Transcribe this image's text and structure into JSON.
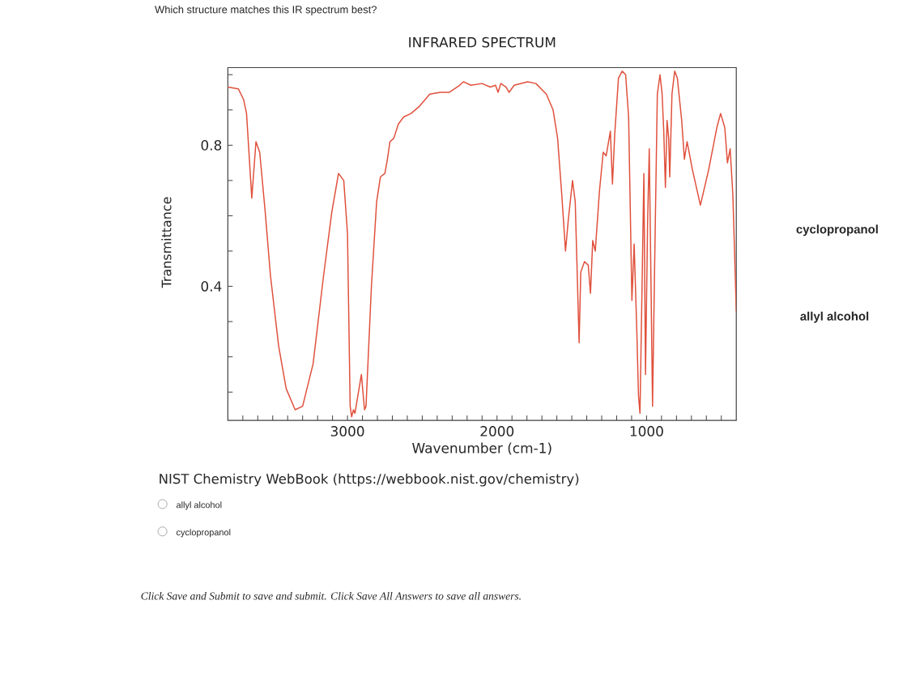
{
  "chart_data": {
    "type": "line",
    "title": "INFRARED SPECTRUM",
    "xlabel": "Wavenumber (cm-1)",
    "ylabel": "Transmittance",
    "annotations": [
      "Which structure matches this IR spectrum best?",
      "cyclopropanol",
      "allyl alcohol",
      "NIST Chemistry WebBook (https://webbook.nist.gov/chemistry)",
      "allyl alcohol",
      "cyclopropanol",
      "Click Save and Submit to save and submit. Click Save All Answers to save all answers."
    ],
    "xlim": [
      3800,
      400
    ],
    "ylim": [
      0.02,
      1.02
    ],
    "xticks": [
      {
        "value": 3700,
        "label": null
      },
      {
        "value": 3600,
        "label": null
      },
      {
        "value": 3500,
        "label": null
      },
      {
        "value": 3400,
        "label": null
      },
      {
        "value": 3300,
        "label": null
      },
      {
        "value": 3200,
        "label": null
      },
      {
        "value": 3100,
        "label": null
      },
      3000,
      {
        "value": 2900,
        "label": null
      },
      {
        "value": 2800,
        "label": null
      },
      {
        "value": 2700,
        "label": null
      },
      {
        "value": 2600,
        "label": null
      },
      {
        "value": 2500,
        "label": null
      },
      {
        "value": 2400,
        "label": null
      },
      {
        "value": 2300,
        "label": null
      },
      {
        "value": 2200,
        "label": null
      },
      {
        "value": 2100,
        "label": null
      },
      2000,
      {
        "value": 1900,
        "label": null
      },
      {
        "value": 1800,
        "label": null
      },
      {
        "value": 1700,
        "label": null
      },
      {
        "value": 1600,
        "label": null
      },
      {
        "value": 1500,
        "label": null
      },
      {
        "value": 1400,
        "label": null
      },
      {
        "value": 1300,
        "label": null
      },
      {
        "value": 1200,
        "label": null
      },
      {
        "value": 1100,
        "label": null
      },
      1000,
      {
        "value": 900,
        "label": null
      },
      {
        "value": 800,
        "label": null
      },
      {
        "value": 700,
        "label": null
      },
      {
        "value": 600,
        "label": null
      },
      {
        "value": 500,
        "label": null
      }
    ],
    "yticks": [
      {
        "value": 0.1,
        "label": null
      },
      {
        "value": 0.2,
        "label": null
      },
      {
        "value": 0.3,
        "label": null
      },
      0.4,
      {
        "value": 0.5,
        "label": null
      },
      {
        "value": 0.6,
        "label": null
      },
      {
        "value": 0.7,
        "label": null
      },
      0.8,
      {
        "value": 0.9,
        "label": null
      },
      {
        "value": 1.0,
        "label": null
      }
    ],
    "series": [
      {
        "color": "#e0503c",
        "x": [
          3800,
          3730,
          3695,
          3675,
          3640,
          3612,
          3587,
          3550,
          3515,
          3460,
          3410,
          3350,
          3300,
          3230,
          3160,
          3105,
          3060,
          3025,
          3000,
          2982,
          2972,
          2960,
          2950,
          2907,
          2886,
          2876,
          2840,
          2805,
          2780,
          2750,
          2733,
          2716,
          2690,
          2660,
          2625,
          2575,
          2520,
          2450,
          2380,
          2320,
          2250,
          2225,
          2175,
          2100,
          2045,
          2010,
          1993,
          1975,
          1940,
          1920,
          1885,
          1795,
          1740,
          1670,
          1625,
          1595,
          1567,
          1542,
          1523,
          1495,
          1477,
          1451,
          1440,
          1415,
          1390,
          1375,
          1360,
          1343,
          1315,
          1290,
          1270,
          1242,
          1228,
          1213,
          1188,
          1163,
          1140,
          1120,
          1098,
          1083,
          1065,
          1054,
          1044,
          1029,
          1018,
          1007,
          993,
          982,
          971,
          960,
          946,
          928,
          910,
          896,
          885,
          874,
          863,
          852,
          845,
          830,
          812,
          794,
          765,
          747,
          729,
          693,
          640,
          585,
          530,
          505,
          477,
          459,
          441,
          423,
          400
        ],
        "values": [
          0.965,
          0.96,
          0.93,
          0.89,
          0.65,
          0.81,
          0.78,
          0.61,
          0.43,
          0.23,
          0.11,
          0.05,
          0.06,
          0.18,
          0.43,
          0.61,
          0.72,
          0.7,
          0.55,
          0.06,
          0.03,
          0.05,
          0.04,
          0.15,
          0.05,
          0.06,
          0.4,
          0.64,
          0.71,
          0.72,
          0.76,
          0.81,
          0.82,
          0.86,
          0.88,
          0.89,
          0.91,
          0.945,
          0.95,
          0.95,
          0.97,
          0.98,
          0.97,
          0.975,
          0.965,
          0.97,
          0.95,
          0.975,
          0.965,
          0.95,
          0.97,
          0.98,
          0.975,
          0.945,
          0.9,
          0.82,
          0.66,
          0.5,
          0.59,
          0.7,
          0.64,
          0.24,
          0.44,
          0.47,
          0.46,
          0.38,
          0.53,
          0.5,
          0.67,
          0.78,
          0.77,
          0.84,
          0.69,
          0.83,
          0.99,
          1.01,
          1.0,
          0.88,
          0.36,
          0.52,
          0.27,
          0.09,
          0.04,
          0.43,
          0.72,
          0.15,
          0.58,
          0.79,
          0.43,
          0.06,
          0.46,
          0.945,
          1.0,
          0.945,
          0.84,
          0.68,
          0.87,
          0.82,
          0.71,
          0.945,
          1.01,
          0.99,
          0.87,
          0.76,
          0.81,
          0.73,
          0.63,
          0.73,
          0.85,
          0.89,
          0.85,
          0.75,
          0.79,
          0.66,
          0.33
        ]
      }
    ]
  }
}
